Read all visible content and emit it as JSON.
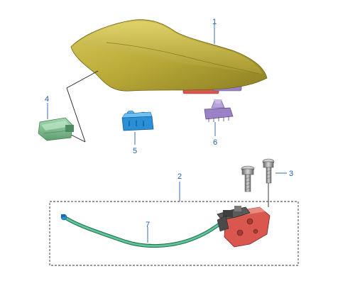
{
  "diagram": {
    "colors": {
      "callout": "#1f5fa8",
      "seat": "#b7a83a",
      "lock_body": "#d9574f",
      "cable": "#3ea07a",
      "clip_blue": "#2a8fd6",
      "clip_purple": "#9b82c6",
      "module_green": "#7fbf90",
      "bolt": "#9a9a9a"
    },
    "callouts": [
      {
        "id": "1",
        "part": "seat"
      },
      {
        "id": "2",
        "part": "seat-lock-assembly"
      },
      {
        "id": "3",
        "part": "bolt"
      },
      {
        "id": "4",
        "part": "module"
      },
      {
        "id": "5",
        "part": "blue-clip"
      },
      {
        "id": "6",
        "part": "purple-clip"
      },
      {
        "id": "7",
        "part": "release-cable"
      }
    ]
  }
}
